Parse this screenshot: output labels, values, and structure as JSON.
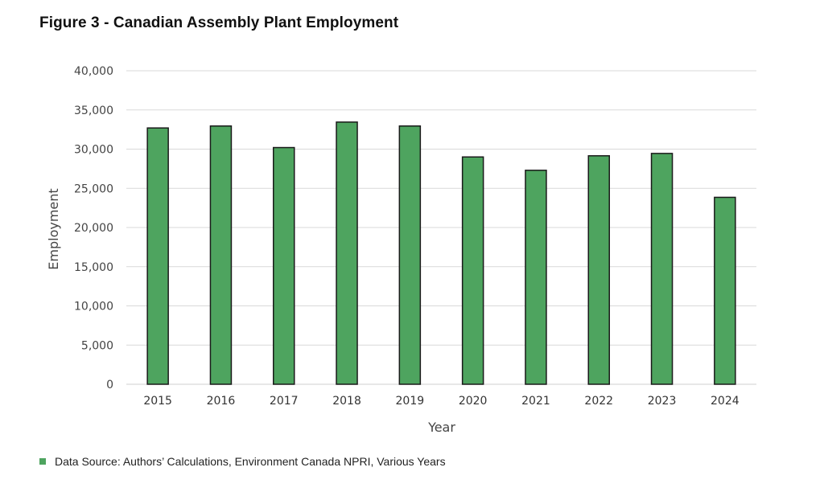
{
  "figure": {
    "title": "Figure 3 - Canadian Assembly Plant Employment",
    "source_note": "Data Source:  Authors’ Calculations, Environment Canada NPRI, Various Years"
  },
  "chart_data": {
    "type": "bar",
    "title": "Figure 3 - Canadian Assembly Plant Employment",
    "xlabel": "Year",
    "ylabel": "Employment",
    "categories": [
      "2015",
      "2016",
      "2017",
      "2018",
      "2019",
      "2020",
      "2021",
      "2022",
      "2023",
      "2024"
    ],
    "values": [
      32700,
      32950,
      30200,
      33450,
      32950,
      29000,
      27300,
      29150,
      29450,
      23850
    ],
    "ylim": [
      0,
      40000
    ],
    "yticks": [
      0,
      5000,
      10000,
      15000,
      20000,
      25000,
      30000,
      35000,
      40000
    ],
    "ytick_labels": [
      "0",
      "5,000",
      "10,000",
      "15,000",
      "20,000",
      "25,000",
      "30,000",
      "35,000",
      "40,000"
    ],
    "grid": true,
    "legend": "none",
    "bar_color": "#4ea45f",
    "bar_edge_color": "#1a1a1a",
    "grid_color": "#d9d9d9"
  }
}
